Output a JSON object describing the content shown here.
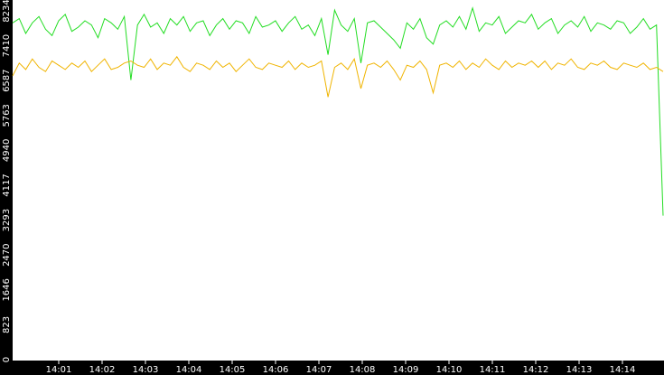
{
  "chart_data": {
    "type": "line",
    "ylim": [
      0,
      8234
    ],
    "yticks": [
      0,
      823,
      1646,
      2470,
      3293,
      4117,
      4940,
      5763,
      6587,
      7410,
      8234
    ],
    "xticks": [
      "14:01",
      "14:02",
      "14:03",
      "14:04",
      "14:05",
      "14:06",
      "14:07",
      "14:08",
      "14:09",
      "14:10",
      "14:11",
      "14:12",
      "14:13",
      "14:14"
    ],
    "series": [
      {
        "color": "#22dd22",
        "values": [
          7950,
          8050,
          7700,
          7950,
          8100,
          7800,
          7650,
          8000,
          8150,
          7750,
          7850,
          8000,
          7900,
          7600,
          8050,
          7950,
          7800,
          8100,
          6600,
          7900,
          8150,
          7850,
          7950,
          7700,
          8050,
          7900,
          8100,
          7750,
          7950,
          8000,
          7650,
          7900,
          8050,
          7800,
          8000,
          7950,
          7700,
          8100,
          7850,
          7900,
          8000,
          7750,
          7950,
          8100,
          7800,
          7900,
          7650,
          8050,
          7200,
          8250,
          7900,
          7750,
          8050,
          7000,
          7950,
          8000,
          7850,
          7700,
          7550,
          7350,
          7950,
          7800,
          8050,
          7600,
          7450,
          7900,
          8000,
          7850,
          8100,
          7800,
          8300,
          7750,
          7950,
          7900,
          8100,
          7700,
          7850,
          8000,
          7950,
          8150,
          7800,
          7950,
          8050,
          7700,
          7900,
          8000,
          7850,
          8100,
          7750,
          7950,
          7900,
          7800,
          8000,
          7950,
          7700,
          7850,
          8050,
          7800,
          7900,
          3400
        ]
      },
      {
        "color": "#f0b400",
        "values": [
          6700,
          7000,
          6850,
          7100,
          6900,
          6800,
          7050,
          6950,
          6850,
          7000,
          6900,
          7050,
          6800,
          6950,
          7100,
          6850,
          6900,
          7000,
          7050,
          6950,
          6900,
          7100,
          6850,
          7000,
          6950,
          7150,
          6900,
          6800,
          7000,
          6950,
          6850,
          7050,
          6900,
          7000,
          6800,
          6950,
          7100,
          6900,
          6850,
          7000,
          6950,
          6900,
          7050,
          6850,
          7000,
          6900,
          6950,
          7050,
          6200,
          6900,
          7000,
          6850,
          7100,
          6400,
          6950,
          7000,
          6900,
          7050,
          6850,
          6600,
          6950,
          6900,
          7050,
          6850,
          6300,
          6950,
          7000,
          6900,
          7050,
          6850,
          7000,
          6900,
          7100,
          6950,
          6850,
          7050,
          6900,
          7000,
          6950,
          7050,
          6900,
          7050,
          6850,
          7000,
          6950,
          7100,
          6900,
          6850,
          7000,
          6950,
          7050,
          6900,
          6850,
          7000,
          6950,
          6900,
          7000,
          6850,
          6900,
          6800
        ]
      }
    ]
  }
}
